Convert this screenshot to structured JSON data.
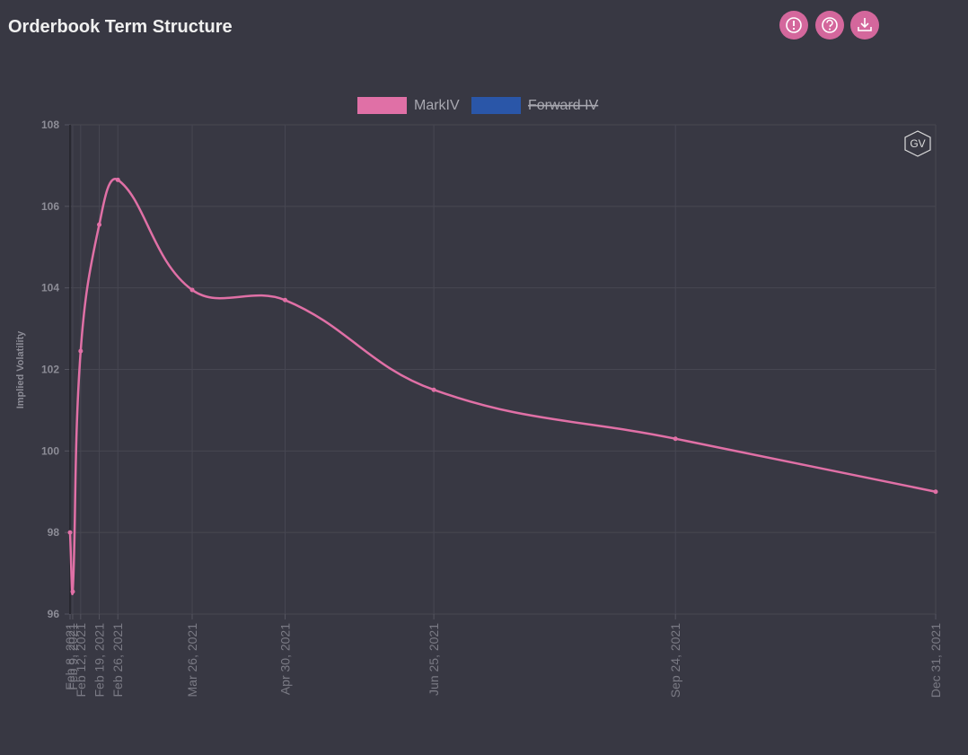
{
  "chart_data": {
    "type": "line",
    "title": "Orderbook Term Structure",
    "ylabel": "Implied Volatility",
    "watermark": "GV",
    "x": [
      "Feb 8, 2021",
      "Feb 9, 2021",
      "Feb 12, 2021",
      "Feb 19, 2021",
      "Feb 26, 2021",
      "Mar 26, 2021",
      "Apr 30, 2021",
      "Jun 25, 2021",
      "Sep 24, 2021",
      "Dec 31, 2021"
    ],
    "series": [
      {
        "name": "MarkIV",
        "color": "#e070a6",
        "values": [
          98.0,
          96.55,
          102.45,
          105.55,
          106.65,
          103.95,
          103.7,
          101.5,
          100.3,
          99.0
        ]
      },
      {
        "name": "Forward IV",
        "color": "#2a56a8",
        "hidden": true,
        "values": [
          null,
          null,
          null,
          null,
          null,
          null,
          null,
          null,
          null,
          null
        ]
      }
    ],
    "xlim": [
      "Feb 8, 2021",
      "Dec 31, 2021"
    ],
    "ylim": [
      96,
      108
    ],
    "yticks": [
      96,
      98,
      100,
      102,
      104,
      106,
      108
    ],
    "grid": true
  }
}
